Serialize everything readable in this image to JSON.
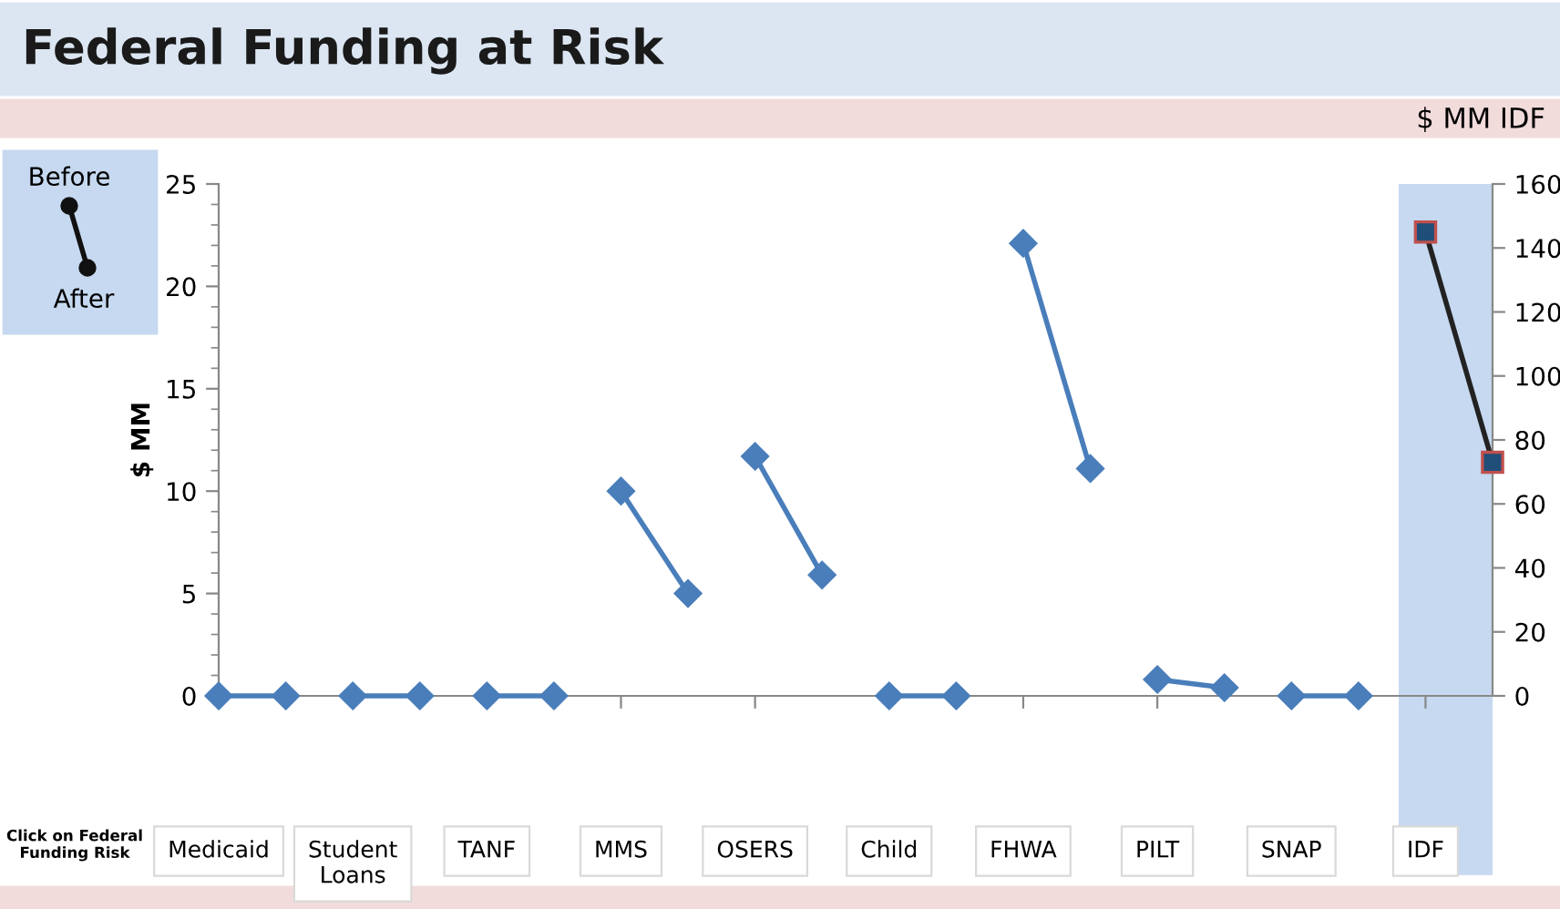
{
  "chart_data": {
    "type": "line",
    "title": "Federal Funding at Risk",
    "categories": [
      "Medicaid",
      null,
      "Student Loans",
      null,
      "TANF",
      null,
      "MMS",
      null,
      "OSERS",
      null,
      "Child",
      null,
      "FHWA",
      null,
      "PILT",
      null,
      "SNAP",
      null,
      "IDF",
      null
    ],
    "series": [
      {
        "color": "#4a7ebb",
        "values": [
          0,
          0,
          null,
          null,
          null,
          null,
          null,
          null,
          null,
          null,
          null,
          null,
          null,
          null,
          null,
          null,
          null,
          null,
          null,
          null
        ]
      },
      {
        "color": "#4a7ebb",
        "values": [
          null,
          null,
          0,
          0,
          null,
          null,
          null,
          null,
          null,
          null,
          null,
          null,
          null,
          null,
          null,
          null,
          null,
          null,
          null,
          null
        ]
      },
      {
        "color": "#4a7ebb",
        "values": [
          null,
          null,
          null,
          null,
          0,
          0,
          null,
          null,
          null,
          null,
          null,
          null,
          null,
          null,
          null,
          null,
          null,
          null,
          null,
          null
        ]
      },
      {
        "color": "#4a7ebb",
        "values": [
          null,
          null,
          null,
          null,
          null,
          null,
          10,
          5,
          null,
          null,
          null,
          null,
          null,
          null,
          null,
          null,
          null,
          null,
          null,
          null
        ]
      },
      {
        "color": "#4a7ebb",
        "values": [
          null,
          null,
          null,
          null,
          null,
          null,
          null,
          null,
          11.7,
          5.9,
          null,
          null,
          null,
          null,
          null,
          null,
          null,
          null,
          null,
          null
        ]
      },
      {
        "color": "#4a7ebb",
        "values": [
          null,
          null,
          null,
          null,
          null,
          null,
          null,
          null,
          null,
          null,
          0,
          0,
          null,
          null,
          null,
          null,
          null,
          null,
          null,
          null
        ]
      },
      {
        "color": "#4a7ebb",
        "values": [
          null,
          null,
          null,
          null,
          null,
          null,
          null,
          null,
          null,
          null,
          null,
          null,
          22.1,
          11.1,
          null,
          null,
          null,
          null,
          null,
          null
        ]
      },
      {
        "color": "#4a7ebb",
        "values": [
          null,
          null,
          null,
          null,
          null,
          null,
          null,
          null,
          null,
          null,
          null,
          null,
          null,
          null,
          0.8,
          0.4,
          null,
          null,
          null,
          null
        ]
      },
      {
        "color": "#4a7ebb",
        "values": [
          null,
          null,
          null,
          null,
          null,
          null,
          null,
          null,
          null,
          null,
          null,
          null,
          null,
          null,
          null,
          null,
          0,
          0,
          null,
          null
        ]
      },
      {
        "color": "#1f4e79",
        "marker": "square",
        "axis": "y2",
        "values": [
          null,
          null,
          null,
          null,
          null,
          null,
          null,
          null,
          null,
          null,
          null,
          null,
          null,
          null,
          null,
          null,
          null,
          null,
          145,
          73
        ]
      }
    ],
    "marker": "diamond",
    "ylabel": "$ MM",
    "y2label": "$ MM IDF",
    "ylim": [
      0,
      25
    ],
    "yticks": [
      0,
      5,
      10,
      15,
      20,
      25
    ],
    "y2lim": [
      0,
      160
    ],
    "y2ticks": [
      0,
      20,
      40,
      60,
      80,
      100,
      120,
      140,
      160
    ],
    "annotations": [
      "Before",
      "After",
      "Click on Federal Funding Risk"
    ],
    "grid": false
  }
}
